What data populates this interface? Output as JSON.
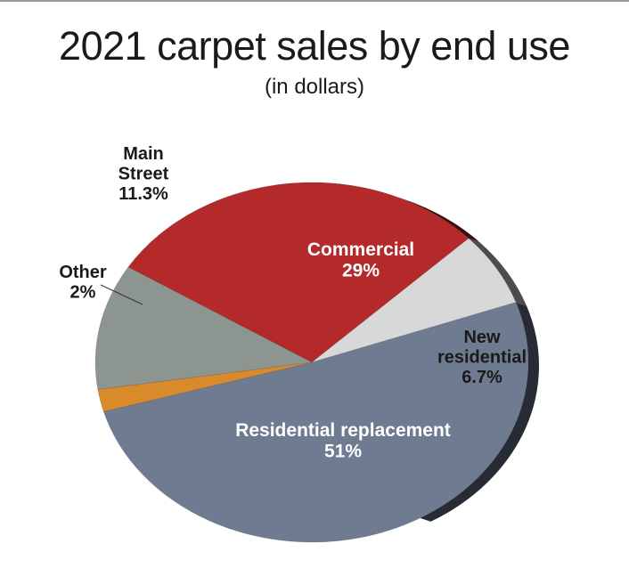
{
  "title": "2021 carpet sales by end use",
  "subtitle": "(in dollars)",
  "chart_data": {
    "type": "pie",
    "title": "2021 carpet sales by end use",
    "subtitle": "(in dollars)",
    "slices": [
      {
        "name": "Commercial",
        "value": 29,
        "value_label": "29%",
        "label_lines": [
          "Commercial"
        ],
        "color": "#b42a2a",
        "label_color": "#ffffff"
      },
      {
        "name": "New residential",
        "value": 6.7,
        "value_label": "6.7%",
        "label_lines": [
          "New",
          "residential"
        ],
        "color": "#d8d8d8",
        "label_color": "#1a1a1a"
      },
      {
        "name": "Residential replacement",
        "value": 51,
        "value_label": "51%",
        "label_lines": [
          "Residential replacement"
        ],
        "color": "#6e7b91",
        "label_color": "#ffffff"
      },
      {
        "name": "Other",
        "value": 2,
        "value_label": "2%",
        "label_lines": [
          "Other"
        ],
        "color": "#d98b2c",
        "label_color": "#1a1a1a"
      },
      {
        "name": "Main Street",
        "value": 11.3,
        "value_label": "11.3%",
        "label_lines": [
          "Main",
          "Street"
        ],
        "color": "#8d9590",
        "label_color": "#1a1a1a"
      }
    ]
  }
}
